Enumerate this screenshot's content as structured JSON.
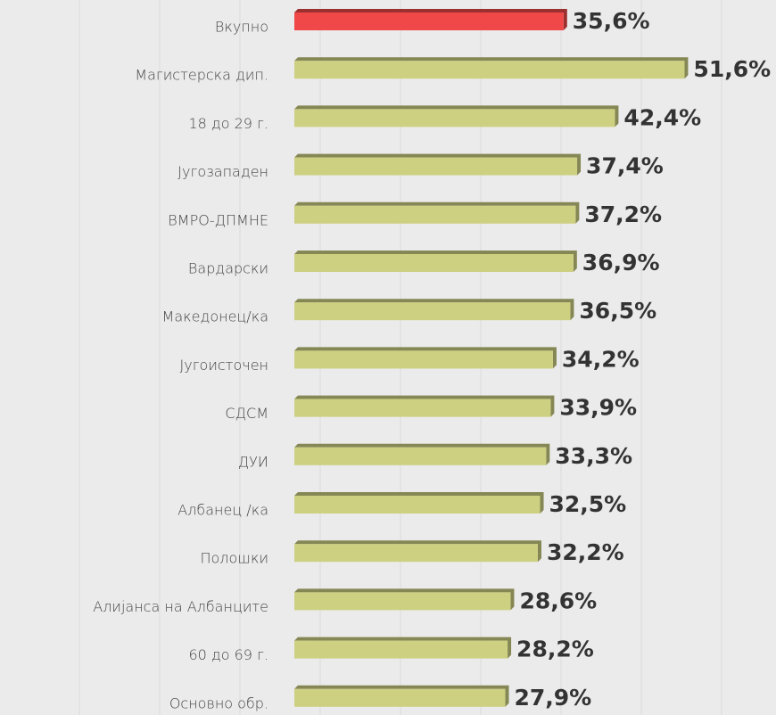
{
  "chart_data": {
    "type": "bar",
    "orientation": "horizontal",
    "categories": [
      "Вкупно",
      "Магистерска дип.",
      "18 до 29 г.",
      "Југозападен",
      "ВМРО-ДПМНЕ",
      "Вардарски",
      "Македонец/ка",
      "Југоисточен",
      "СДСМ",
      "ДУИ",
      "Албанец /ка",
      "Полошки",
      "Алијанса на Албанците",
      "60 до 69 г.",
      "Основно обр."
    ],
    "values": [
      35.6,
      51.6,
      42.4,
      37.4,
      37.2,
      36.9,
      36.5,
      34.2,
      33.9,
      33.3,
      32.5,
      32.2,
      28.6,
      28.2,
      27.9
    ],
    "value_labels": [
      "35,6%",
      "51,6%",
      "42,4%",
      "37,4%",
      "37,2%",
      "36,9%",
      "36,5%",
      "34,2%",
      "33,9%",
      "33,3%",
      "32,5%",
      "32,2%",
      "28,6%",
      "28,2%",
      "27,9%"
    ],
    "colors": [
      "#f04848",
      "#cdd081",
      "#cdd081",
      "#cdd081",
      "#cdd081",
      "#cdd081",
      "#cdd081",
      "#cdd081",
      "#cdd081",
      "#cdd081",
      "#cdd081",
      "#cdd081",
      "#cdd081",
      "#cdd081",
      "#cdd081"
    ],
    "xlim": [
      0,
      63.7
    ]
  }
}
